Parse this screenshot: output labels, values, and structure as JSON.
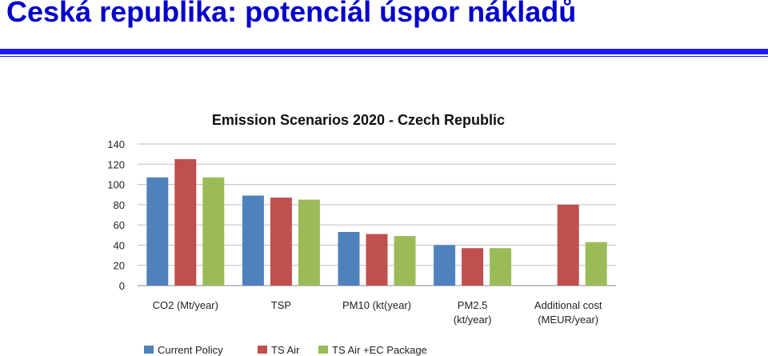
{
  "slide": {
    "title": "Česká republika: potenciál úspor nákladů",
    "accent_color": "#1a1aff",
    "title_color": "#0000cc"
  },
  "chart_data": {
    "type": "bar",
    "title": "Emission Scenarios 2020 - Czech Republic",
    "categories": [
      "CO2 (Mt/year)",
      "TSP",
      "PM10 (kt(year)",
      "PM2.5 (kt/year)",
      "Additional cost (MEUR/year)"
    ],
    "category_lines": [
      [
        "CO2 (Mt/year)"
      ],
      [
        "TSP"
      ],
      [
        "PM10 (kt(year)"
      ],
      [
        "PM2.5",
        "(kt/year)"
      ],
      [
        "Additional cost",
        "(MEUR/year)"
      ]
    ],
    "series": [
      {
        "name": "Current Policy",
        "color": "#4f81bd",
        "values": [
          107,
          89,
          53,
          40,
          null
        ]
      },
      {
        "name": "TS Air",
        "color": "#c0504d",
        "values": [
          125,
          87,
          51,
          37,
          80
        ]
      },
      {
        "name": "TS Air +EC Package",
        "color": "#9bbb59",
        "values": [
          107,
          85,
          49,
          37,
          43
        ]
      }
    ],
    "ylim": [
      0,
      140
    ],
    "yticks": [
      0,
      20,
      40,
      60,
      80,
      100,
      120,
      140
    ],
    "grid": true,
    "legend_position": "bottom"
  }
}
